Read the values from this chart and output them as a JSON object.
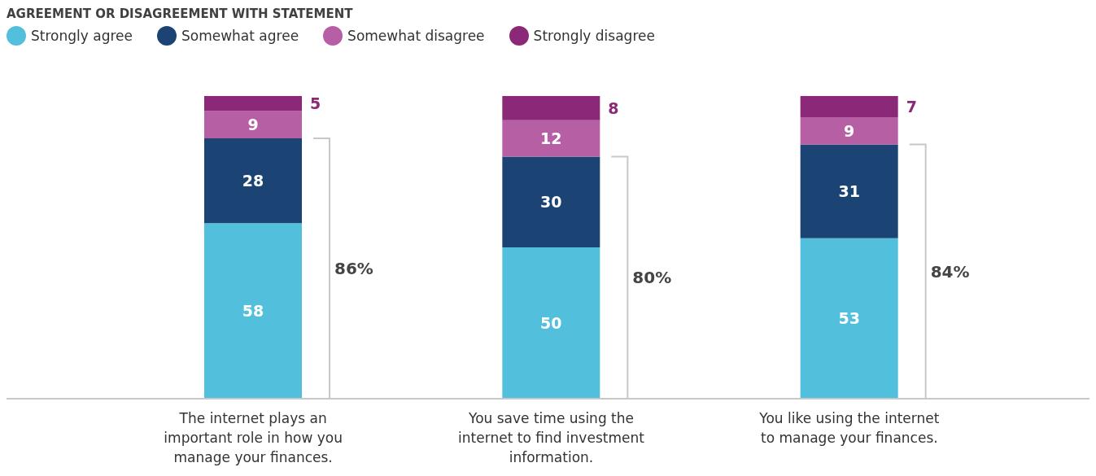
{
  "chart_data": {
    "type": "bar",
    "legend_title": "AGREEMENT OR DISAGREEMENT WITH STATEMENT",
    "legend": "top left",
    "stacked": true,
    "data_labels": true,
    "categories": [
      "The internet plays an important role in how you manage your finances.",
      "You save time using the internet to find investment information.",
      "You like using the internet to manage your finances."
    ],
    "series": [
      {
        "name": "Strongly agree",
        "color": "#52c0dc",
        "values": [
          58,
          50,
          53
        ]
      },
      {
        "name": "Somewhat agree",
        "color": "#1b4474",
        "values": [
          28,
          30,
          31
        ]
      },
      {
        "name": "Somewhat disagree",
        "color": "#b75fa5",
        "values": [
          9,
          12,
          9
        ]
      },
      {
        "name": "Strongly disagree",
        "color": "#8b2877",
        "values": [
          5,
          8,
          7
        ]
      }
    ],
    "annotations": [
      "86%",
      "80%",
      "84%"
    ]
  }
}
